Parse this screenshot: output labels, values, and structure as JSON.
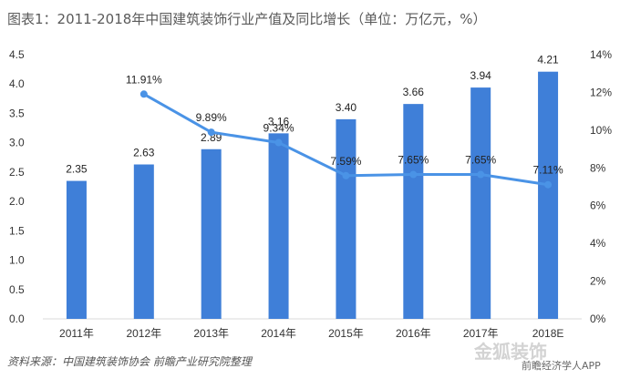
{
  "title": "图表1：2011-2018年中国建筑装饰行业产值及同比增长（单位：万亿元，%）",
  "source": "资料来源：中国建筑装饰协会 前瞻产业研究院整理",
  "brand": "前瞻经济学人APP",
  "brand_mark": "金狐装饰",
  "colors": {
    "bar": "#3f7fd8",
    "line": "#4a93e6"
  },
  "chart_data": {
    "type": "bar",
    "categories": [
      "2011年",
      "2012年",
      "2013年",
      "2014年",
      "2015年",
      "2016年",
      "2017年",
      "2018E"
    ],
    "series": [
      {
        "type": "bar",
        "axis": "left",
        "values": [
          2.35,
          2.63,
          2.89,
          3.16,
          3.4,
          3.66,
          3.94,
          4.21
        ],
        "labels": [
          "2.35",
          "2.63",
          "2.89",
          "3.16",
          "3.40",
          "3.66",
          "3.94",
          "4.21"
        ]
      },
      {
        "type": "line",
        "axis": "right",
        "values": [
          null,
          11.91,
          9.89,
          9.34,
          7.59,
          7.65,
          7.65,
          7.11
        ],
        "labels": [
          "",
          "11.91%",
          "9.89%",
          "9.34%",
          "7.59%",
          "7.65%",
          "7.65%",
          "7.11%"
        ]
      }
    ],
    "ylim": [
      0,
      4.5
    ],
    "yticks": [
      "0.0",
      "0.5",
      "1.0",
      "1.5",
      "2.0",
      "2.5",
      "3.0",
      "3.5",
      "4.0",
      "4.5"
    ],
    "y2lim": [
      0,
      14
    ],
    "y2ticks": [
      "0%",
      "2%",
      "4%",
      "6%",
      "8%",
      "10%",
      "12%",
      "14%"
    ],
    "grid": false,
    "legend": "none"
  }
}
